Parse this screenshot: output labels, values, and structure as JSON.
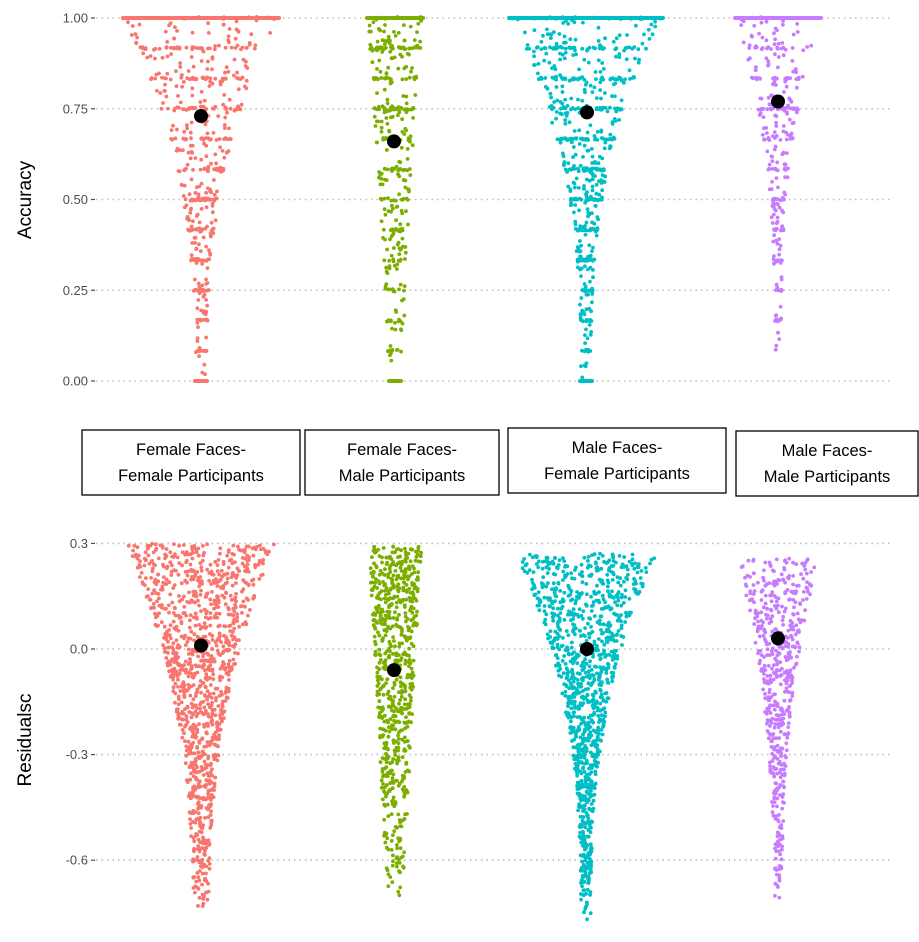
{
  "colors": {
    "ff": "#f8766d",
    "fm": "#7cae00",
    "mf": "#00bfc4",
    "mm": "#c77cff",
    "mean_point": "#000000"
  },
  "chart_data": [
    {
      "type": "scatter",
      "style": "jittered strip (beeswarm-like) plot with group mean points",
      "title": "",
      "xlabel": "",
      "ylabel": "Accuracy",
      "ylim": [
        0,
        1
      ],
      "yticks": [
        "0.00",
        "0.25",
        "0.50",
        "0.75",
        "1.00"
      ],
      "ytick_values": [
        0,
        0.25,
        0.5,
        0.75,
        1.0
      ],
      "grid": "horizontal dotted",
      "groups": [
        {
          "key": "ff",
          "label_line1": "Female Faces-",
          "label_line2": "Female Participants",
          "mean": 0.73,
          "min": 0.0,
          "max": 1.0
        },
        {
          "key": "fm",
          "label_line1": "Female Faces-",
          "label_line2": "Male Participants",
          "mean": 0.66,
          "min": 0.0,
          "max": 1.0
        },
        {
          "key": "mf",
          "label_line1": "Male Faces-",
          "label_line2": "Female Participants",
          "mean": 0.74,
          "min": 0.0,
          "max": 1.0
        },
        {
          "key": "mm",
          "label_line1": "Male Faces-",
          "label_line2": "Male Participants",
          "mean": 0.77,
          "min": 0.06,
          "max": 1.0
        }
      ]
    },
    {
      "type": "scatter",
      "style": "jittered strip (beeswarm-like) plot with group mean points",
      "title": "",
      "xlabel": "",
      "ylabel": "Residualsc",
      "ylim": [
        -0.78,
        0.31
      ],
      "yticks": [
        "0.3",
        "0.0",
        "-0.3",
        "-0.6"
      ],
      "ytick_values": [
        0.3,
        0.0,
        -0.3,
        -0.6
      ],
      "grid": "horizontal dotted",
      "groups": [
        {
          "key": "ff",
          "label_line1": "Female Faces-",
          "label_line2": "Female Participants",
          "mean": 0.01,
          "min": -0.75,
          "max": 0.3
        },
        {
          "key": "fm",
          "label_line1": "Female Faces-",
          "label_line2": "Male Participants",
          "mean": -0.06,
          "min": -0.73,
          "max": 0.29
        },
        {
          "key": "mf",
          "label_line1": "Male Faces-",
          "label_line2": "Female Participants",
          "mean": 0.0,
          "min": -0.78,
          "max": 0.27
        },
        {
          "key": "mm",
          "label_line1": "Male Faces-",
          "label_line2": "Male Participants",
          "mean": 0.03,
          "min": -0.75,
          "max": 0.26
        }
      ]
    }
  ],
  "strips": [
    {
      "line1": "Female Faces-",
      "line2": "Female Participants"
    },
    {
      "line1": "Female Faces-",
      "line2": "Male Participants"
    },
    {
      "line1": "Male Faces-",
      "line2": "Female Participants"
    },
    {
      "line1": "Male Faces-",
      "line2": "Male Participants"
    }
  ]
}
